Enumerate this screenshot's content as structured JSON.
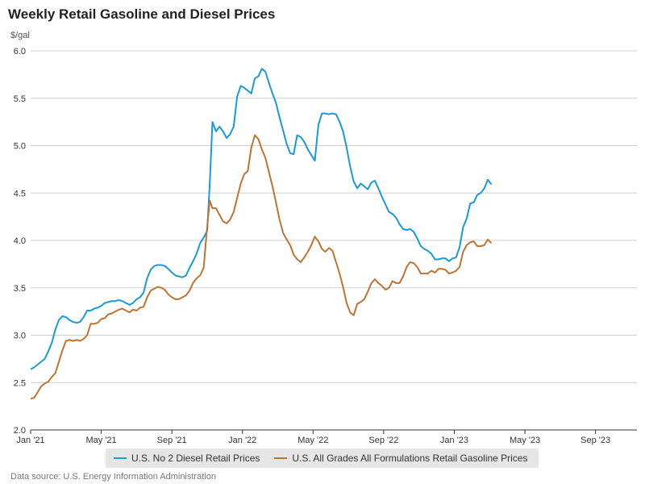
{
  "chart_data": {
    "type": "line",
    "title": "Weekly Retail Gasoline and Diesel Prices",
    "ylabel": "$/gal",
    "xlabel": "",
    "ylim": [
      2.0,
      6.0
    ],
    "yticks": [
      2.0,
      2.5,
      3.0,
      3.5,
      4.0,
      4.5,
      5.0,
      5.5,
      6.0
    ],
    "xticks": [
      {
        "label": "Jan '21",
        "x": 0
      },
      {
        "label": "May '21",
        "x": 4
      },
      {
        "label": "Sep '21",
        "x": 8
      },
      {
        "label": "Jan '22",
        "x": 12
      },
      {
        "label": "May '22",
        "x": 16
      },
      {
        "label": "Sep '22",
        "x": 20
      },
      {
        "label": "Jan '23",
        "x": 24
      },
      {
        "label": "May '23",
        "x": 28
      },
      {
        "label": "Sep '23",
        "x": 32
      }
    ],
    "xlim": [
      0,
      32.8
    ],
    "grid": true,
    "legend": "bottom",
    "series": [
      {
        "name": "U.S. No 2 Diesel Retail Prices",
        "color": "#1a9ad6",
        "points": [
          [
            0,
            2.64
          ],
          [
            0.2,
            2.66
          ],
          [
            0.4,
            2.69
          ],
          [
            0.6,
            2.72
          ],
          [
            0.8,
            2.75
          ],
          [
            1.0,
            2.83
          ],
          [
            1.2,
            2.92
          ],
          [
            1.4,
            3.06
          ],
          [
            1.6,
            3.16
          ],
          [
            1.8,
            3.2
          ],
          [
            2.0,
            3.19
          ],
          [
            2.2,
            3.16
          ],
          [
            2.4,
            3.14
          ],
          [
            2.6,
            3.13
          ],
          [
            2.8,
            3.14
          ],
          [
            3.0,
            3.19
          ],
          [
            3.2,
            3.26
          ],
          [
            3.4,
            3.26
          ],
          [
            3.6,
            3.28
          ],
          [
            3.8,
            3.29
          ],
          [
            4.0,
            3.31
          ],
          [
            4.2,
            3.34
          ],
          [
            4.4,
            3.35
          ],
          [
            4.6,
            3.36
          ],
          [
            4.8,
            3.36
          ],
          [
            5.0,
            3.37
          ],
          [
            5.2,
            3.36
          ],
          [
            5.4,
            3.34
          ],
          [
            5.6,
            3.32
          ],
          [
            5.8,
            3.34
          ],
          [
            6.0,
            3.38
          ],
          [
            6.2,
            3.4
          ],
          [
            6.4,
            3.45
          ],
          [
            6.6,
            3.6
          ],
          [
            6.8,
            3.69
          ],
          [
            7.0,
            3.73
          ],
          [
            7.2,
            3.74
          ],
          [
            7.4,
            3.74
          ],
          [
            7.6,
            3.73
          ],
          [
            7.8,
            3.7
          ],
          [
            8.0,
            3.66
          ],
          [
            8.2,
            3.63
          ],
          [
            8.4,
            3.62
          ],
          [
            8.6,
            3.61
          ],
          [
            8.8,
            3.63
          ],
          [
            9.0,
            3.71
          ],
          [
            9.2,
            3.78
          ],
          [
            9.4,
            3.86
          ],
          [
            9.6,
            3.97
          ],
          [
            9.8,
            4.03
          ],
          [
            10.0,
            4.1
          ],
          [
            10.15,
            4.6
          ],
          [
            10.3,
            5.25
          ],
          [
            10.5,
            5.15
          ],
          [
            10.7,
            5.2
          ],
          [
            10.9,
            5.15
          ],
          [
            11.1,
            5.08
          ],
          [
            11.3,
            5.12
          ],
          [
            11.5,
            5.2
          ],
          [
            11.7,
            5.52
          ],
          [
            11.9,
            5.63
          ],
          [
            12.1,
            5.61
          ],
          [
            12.3,
            5.58
          ],
          [
            12.5,
            5.55
          ],
          [
            12.7,
            5.71
          ],
          [
            12.9,
            5.73
          ],
          [
            13.1,
            5.81
          ],
          [
            13.3,
            5.78
          ],
          [
            13.5,
            5.66
          ],
          [
            13.7,
            5.55
          ],
          [
            13.9,
            5.45
          ],
          [
            14.1,
            5.3
          ],
          [
            14.3,
            5.16
          ],
          [
            14.5,
            5.02
          ],
          [
            14.7,
            4.92
          ],
          [
            14.9,
            4.91
          ],
          [
            15.1,
            5.11
          ],
          [
            15.3,
            5.09
          ],
          [
            15.5,
            5.04
          ],
          [
            15.7,
            4.96
          ],
          [
            15.9,
            4.9
          ],
          [
            16.1,
            4.84
          ],
          [
            16.3,
            5.22
          ],
          [
            16.5,
            5.34
          ],
          [
            16.7,
            5.34
          ],
          [
            16.9,
            5.33
          ],
          [
            17.1,
            5.34
          ],
          [
            17.3,
            5.33
          ],
          [
            17.5,
            5.25
          ],
          [
            17.7,
            5.15
          ],
          [
            17.9,
            4.98
          ],
          [
            18.1,
            4.78
          ],
          [
            18.3,
            4.62
          ],
          [
            18.5,
            4.55
          ],
          [
            18.7,
            4.6
          ],
          [
            18.9,
            4.57
          ],
          [
            19.1,
            4.54
          ],
          [
            19.3,
            4.61
          ],
          [
            19.5,
            4.63
          ],
          [
            19.7,
            4.55
          ],
          [
            19.9,
            4.46
          ],
          [
            20.1,
            4.38
          ],
          [
            20.3,
            4.3
          ],
          [
            20.5,
            4.28
          ],
          [
            20.7,
            4.24
          ],
          [
            20.9,
            4.17
          ],
          [
            21.1,
            4.12
          ],
          [
            21.3,
            4.11
          ],
          [
            21.5,
            4.12
          ],
          [
            21.7,
            4.09
          ],
          [
            21.9,
            4.02
          ],
          [
            22.1,
            3.94
          ],
          [
            22.3,
            3.91
          ],
          [
            22.5,
            3.89
          ],
          [
            22.7,
            3.86
          ],
          [
            22.9,
            3.8
          ],
          [
            23.1,
            3.8
          ],
          [
            23.3,
            3.81
          ],
          [
            23.5,
            3.81
          ],
          [
            23.7,
            3.78
          ],
          [
            23.9,
            3.81
          ],
          [
            24.1,
            3.82
          ],
          [
            24.3,
            3.93
          ],
          [
            24.5,
            4.14
          ],
          [
            24.7,
            4.23
          ],
          [
            24.9,
            4.39
          ],
          [
            25.1,
            4.4
          ],
          [
            25.3,
            4.48
          ],
          [
            25.5,
            4.5
          ],
          [
            25.7,
            4.55
          ],
          [
            25.9,
            4.64
          ],
          [
            26.1,
            4.59
          ]
        ]
      },
      {
        "name": "U.S. All Grades All Formulations Retail Gasoline Prices",
        "color": "#c07431",
        "points": [
          [
            0,
            2.33
          ],
          [
            0.2,
            2.34
          ],
          [
            0.4,
            2.4
          ],
          [
            0.6,
            2.46
          ],
          [
            0.8,
            2.49
          ],
          [
            1.0,
            2.51
          ],
          [
            1.2,
            2.56
          ],
          [
            1.4,
            2.6
          ],
          [
            1.6,
            2.72
          ],
          [
            1.8,
            2.84
          ],
          [
            2.0,
            2.94
          ],
          [
            2.2,
            2.95
          ],
          [
            2.4,
            2.94
          ],
          [
            2.6,
            2.95
          ],
          [
            2.8,
            2.94
          ],
          [
            3.0,
            2.96
          ],
          [
            3.2,
            3.0
          ],
          [
            3.4,
            3.12
          ],
          [
            3.6,
            3.12
          ],
          [
            3.8,
            3.13
          ],
          [
            4.0,
            3.17
          ],
          [
            4.2,
            3.18
          ],
          [
            4.4,
            3.22
          ],
          [
            4.6,
            3.23
          ],
          [
            4.8,
            3.25
          ],
          [
            5.0,
            3.27
          ],
          [
            5.2,
            3.28
          ],
          [
            5.4,
            3.26
          ],
          [
            5.6,
            3.24
          ],
          [
            5.8,
            3.27
          ],
          [
            6.0,
            3.26
          ],
          [
            6.2,
            3.29
          ],
          [
            6.4,
            3.3
          ],
          [
            6.6,
            3.4
          ],
          [
            6.8,
            3.47
          ],
          [
            7.0,
            3.49
          ],
          [
            7.2,
            3.51
          ],
          [
            7.4,
            3.5
          ],
          [
            7.6,
            3.48
          ],
          [
            7.8,
            3.43
          ],
          [
            8.0,
            3.4
          ],
          [
            8.2,
            3.38
          ],
          [
            8.4,
            3.38
          ],
          [
            8.6,
            3.4
          ],
          [
            8.8,
            3.42
          ],
          [
            9.0,
            3.47
          ],
          [
            9.2,
            3.55
          ],
          [
            9.4,
            3.6
          ],
          [
            9.6,
            3.63
          ],
          [
            9.8,
            3.71
          ],
          [
            10.0,
            4.15
          ],
          [
            10.15,
            4.42
          ],
          [
            10.3,
            4.34
          ],
          [
            10.5,
            4.34
          ],
          [
            10.7,
            4.27
          ],
          [
            10.9,
            4.2
          ],
          [
            11.1,
            4.18
          ],
          [
            11.3,
            4.22
          ],
          [
            11.5,
            4.3
          ],
          [
            11.7,
            4.45
          ],
          [
            11.9,
            4.6
          ],
          [
            12.1,
            4.7
          ],
          [
            12.3,
            4.73
          ],
          [
            12.5,
            4.98
          ],
          [
            12.7,
            5.11
          ],
          [
            12.9,
            5.07
          ],
          [
            13.1,
            4.96
          ],
          [
            13.3,
            4.87
          ],
          [
            13.5,
            4.72
          ],
          [
            13.7,
            4.57
          ],
          [
            13.9,
            4.4
          ],
          [
            14.1,
            4.22
          ],
          [
            14.3,
            4.08
          ],
          [
            14.5,
            4.01
          ],
          [
            14.7,
            3.95
          ],
          [
            14.9,
            3.85
          ],
          [
            15.1,
            3.8
          ],
          [
            15.3,
            3.77
          ],
          [
            15.5,
            3.82
          ],
          [
            15.7,
            3.88
          ],
          [
            15.9,
            3.95
          ],
          [
            16.1,
            4.04
          ],
          [
            16.3,
            3.99
          ],
          [
            16.5,
            3.91
          ],
          [
            16.7,
            3.88
          ],
          [
            16.9,
            3.92
          ],
          [
            17.1,
            3.89
          ],
          [
            17.3,
            3.77
          ],
          [
            17.5,
            3.65
          ],
          [
            17.7,
            3.51
          ],
          [
            17.9,
            3.34
          ],
          [
            18.1,
            3.24
          ],
          [
            18.3,
            3.21
          ],
          [
            18.5,
            3.33
          ],
          [
            18.7,
            3.35
          ],
          [
            18.9,
            3.38
          ],
          [
            19.1,
            3.46
          ],
          [
            19.3,
            3.55
          ],
          [
            19.5,
            3.59
          ],
          [
            19.7,
            3.55
          ],
          [
            19.9,
            3.52
          ],
          [
            20.1,
            3.48
          ],
          [
            20.3,
            3.5
          ],
          [
            20.5,
            3.57
          ],
          [
            20.7,
            3.55
          ],
          [
            20.9,
            3.55
          ],
          [
            21.1,
            3.62
          ],
          [
            21.3,
            3.72
          ],
          [
            21.5,
            3.77
          ],
          [
            21.7,
            3.76
          ],
          [
            21.9,
            3.72
          ],
          [
            22.1,
            3.65
          ],
          [
            22.3,
            3.65
          ],
          [
            22.5,
            3.65
          ],
          [
            22.7,
            3.68
          ],
          [
            22.9,
            3.66
          ],
          [
            23.1,
            3.7
          ],
          [
            23.3,
            3.7
          ],
          [
            23.5,
            3.69
          ],
          [
            23.7,
            3.65
          ],
          [
            23.9,
            3.66
          ],
          [
            24.1,
            3.68
          ],
          [
            24.3,
            3.72
          ],
          [
            24.5,
            3.88
          ],
          [
            24.7,
            3.95
          ],
          [
            24.9,
            3.98
          ],
          [
            25.1,
            3.99
          ],
          [
            25.3,
            3.94
          ],
          [
            25.5,
            3.94
          ],
          [
            25.7,
            3.95
          ],
          [
            25.9,
            4.01
          ],
          [
            26.1,
            3.97
          ]
        ]
      }
    ]
  },
  "source": "Data source: U.S. Energy Information Administration",
  "colors": {
    "grid": "#d0d0d0",
    "axis": "#333333",
    "legend_bg": "#e6e6e6"
  }
}
